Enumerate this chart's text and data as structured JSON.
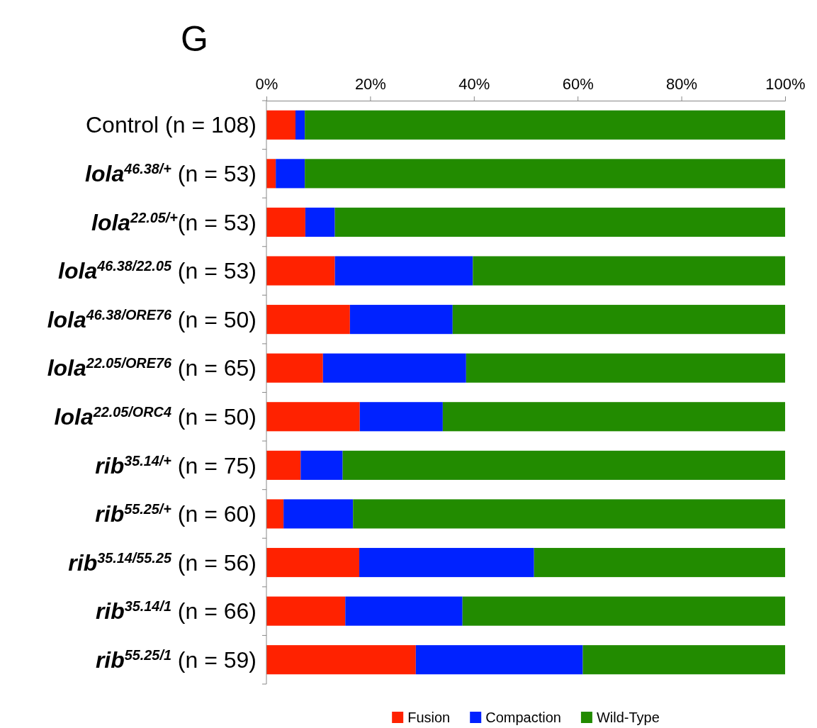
{
  "chart_data": {
    "type": "bar",
    "orientation": "horizontal",
    "stacked": true,
    "title": "G",
    "categories": [
      "Control (n = 108)",
      "lola$^{46.38/+}$ (n = 53)",
      "lola$^{22.05/+}$(n = 53)",
      "lola$^{46.38/22.05}$ (n = 53)",
      "lola$^{46.38/ORE76}$ (n = 50)",
      "lola$^{22.05/ORE76}$ (n = 65)",
      "lola$^{22.05/ORC4}$ (n = 50)",
      "rib$^{35.14/+}$ (n = 75)",
      "rib$^{55.25/+}$ (n = 60)",
      "rib$^{35.14/55.25}$ (n = 56)",
      "rib$^{35.14/1}$ (n = 66)",
      "rib$^{55.25/1}$ (n = 59)"
    ],
    "series": [
      {
        "name": "Fusion",
        "color": "#ff2200",
        "values": [
          5.6,
          1.8,
          7.5,
          13.2,
          16.1,
          10.9,
          18.0,
          6.6,
          3.3,
          17.9,
          15.2,
          28.8
        ]
      },
      {
        "name": "Compaction",
        "color": "#0022ff",
        "values": [
          1.8,
          5.6,
          5.7,
          26.6,
          19.8,
          27.6,
          16.0,
          8.1,
          13.4,
          33.7,
          22.6,
          32.2
        ]
      },
      {
        "name": "Wild-Type",
        "color": "#228b00",
        "values": [
          92.6,
          92.6,
          86.8,
          60.2,
          64.1,
          61.5,
          66.0,
          85.3,
          83.3,
          48.4,
          62.2,
          39.0
        ]
      }
    ],
    "xlim": [
      0,
      100
    ],
    "xticks": [
      {
        "value": 0,
        "label": "0%"
      },
      {
        "value": 20,
        "label": "20%"
      },
      {
        "value": 40,
        "label": "40%"
      },
      {
        "value": 60,
        "label": "60%"
      },
      {
        "value": 80,
        "label": "80%"
      },
      {
        "value": 100,
        "label": "100%"
      }
    ],
    "grid": false,
    "legend": "bottom"
  }
}
